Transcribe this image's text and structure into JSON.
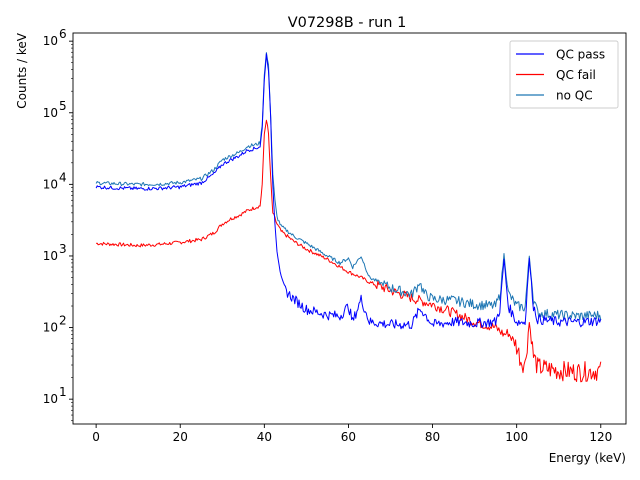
{
  "chart_data": {
    "type": "line",
    "title": "V07298B - run 1",
    "xlabel": "Energy (keV)",
    "ylabel": "Counts / keV",
    "x_scale": "linear",
    "y_scale": "log",
    "xlim": [
      -5.5,
      126
    ],
    "ylim": [
      4.5,
      1300000
    ],
    "x_ticks": [
      0,
      20,
      40,
      60,
      80,
      100,
      120
    ],
    "x_tick_labels": [
      "0",
      "20",
      "40",
      "60",
      "80",
      "100",
      "120"
    ],
    "y_ticks": [
      10,
      100,
      1000,
      10000,
      100000,
      1000000
    ],
    "y_tick_labels": [
      "10",
      "10",
      "10",
      "10",
      "10",
      "10"
    ],
    "y_tick_exponents": [
      "1",
      "2",
      "3",
      "4",
      "5",
      "6"
    ],
    "grid": false,
    "legend_position": "top-right",
    "series": [
      {
        "name": "QC pass",
        "color": "#0000ff",
        "x": [
          0,
          5,
          10,
          15,
          20,
          25,
          28,
          30,
          32,
          34,
          36,
          38,
          39,
          39.5,
          40,
          40.5,
          41,
          41.5,
          42,
          42.5,
          43,
          44,
          45,
          47,
          50,
          55,
          58,
          60,
          61,
          63,
          65,
          70,
          75,
          77,
          78,
          80,
          85,
          90,
          95,
          96,
          97,
          98,
          100,
          102,
          103,
          104,
          105,
          110,
          115,
          120
        ],
        "y": [
          9200,
          8900,
          8700,
          8800,
          9200,
          10500,
          14000,
          19000,
          22000,
          25000,
          30000,
          32000,
          34000,
          60000,
          300000,
          650000,
          400000,
          80000,
          10000,
          3000,
          1200,
          500,
          330,
          250,
          180,
          150,
          145,
          200,
          120,
          250,
          120,
          110,
          110,
          180,
          160,
          110,
          120,
          115,
          120,
          180,
          900,
          200,
          120,
          120,
          900,
          200,
          130,
          120,
          120,
          125
        ]
      },
      {
        "name": "QC fail",
        "color": "#ff0000",
        "x": [
          0,
          5,
          10,
          15,
          20,
          25,
          28,
          30,
          32,
          34,
          36,
          38,
          39,
          39.5,
          40,
          40.5,
          41,
          41.5,
          42,
          43,
          44,
          47,
          50,
          55,
          60,
          63,
          65,
          70,
          75,
          80,
          85,
          90,
          95,
          97,
          98,
          100,
          101,
          102,
          103,
          104,
          105,
          110,
          115,
          120
        ],
        "y": [
          1500,
          1450,
          1400,
          1450,
          1550,
          1700,
          2100,
          2800,
          3300,
          3700,
          4300,
          4800,
          5000,
          10000,
          50000,
          82000,
          50000,
          12000,
          4000,
          2800,
          2200,
          1600,
          1250,
          900,
          600,
          500,
          430,
          330,
          260,
          210,
          160,
          120,
          100,
          80,
          85,
          55,
          35,
          30,
          120,
          40,
          28,
          25,
          24,
          25
        ]
      },
      {
        "name": "no QC",
        "color": "#1f77b4",
        "x": [
          0,
          5,
          10,
          15,
          20,
          25,
          28,
          30,
          32,
          34,
          36,
          38,
          39,
          39.5,
          40,
          40.5,
          41,
          41.5,
          42,
          42.5,
          43,
          44,
          47,
          50,
          55,
          58,
          60,
          61,
          63,
          65,
          70,
          75,
          77,
          78,
          80,
          85,
          90,
          95,
          96,
          97,
          98,
          100,
          102,
          103,
          104,
          105,
          110,
          115,
          120
        ],
        "y": [
          10500,
          10200,
          10000,
          10100,
          10600,
          12000,
          16000,
          22000,
          25000,
          28000,
          34000,
          36000,
          38000,
          70000,
          350000,
          680000,
          450000,
          90000,
          14000,
          6000,
          3500,
          2600,
          1900,
          1500,
          1000,
          800,
          930,
          700,
          1000,
          500,
          360,
          290,
          420,
          300,
          250,
          240,
          210,
          200,
          280,
          1050,
          300,
          200,
          190,
          1000,
          250,
          160,
          150,
          145,
          150
        ]
      }
    ]
  }
}
